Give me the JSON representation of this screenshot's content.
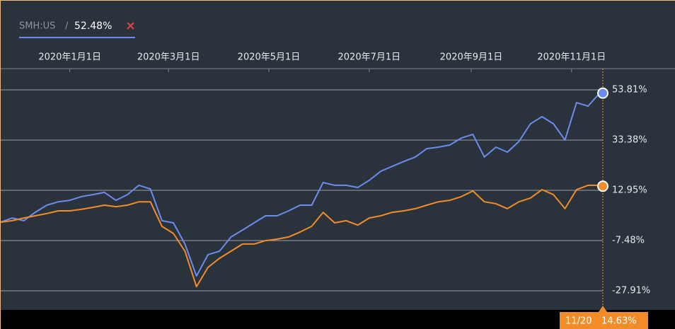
{
  "chart_data": {
    "type": "line",
    "legend_value_label": "52.48%",
    "legend_separator": "/",
    "tooltip": {
      "date": "11/20",
      "value": "14.63%"
    },
    "x": [
      "2019-11-20",
      "2019-11-27",
      "2019-12-04",
      "2019-12-11",
      "2019-12-18",
      "2019-12-25",
      "2020-01-01",
      "2020-01-08",
      "2020-01-15",
      "2020-01-22",
      "2020-01-29",
      "2020-02-05",
      "2020-02-12",
      "2020-02-19",
      "2020-02-26",
      "2020-03-04",
      "2020-03-11",
      "2020-03-18",
      "2020-03-25",
      "2020-04-01",
      "2020-04-08",
      "2020-04-15",
      "2020-04-22",
      "2020-04-29",
      "2020-05-06",
      "2020-05-13",
      "2020-05-20",
      "2020-05-27",
      "2020-06-03",
      "2020-06-10",
      "2020-06-17",
      "2020-06-24",
      "2020-07-01",
      "2020-07-08",
      "2020-07-15",
      "2020-07-22",
      "2020-07-29",
      "2020-08-05",
      "2020-08-12",
      "2020-08-19",
      "2020-08-26",
      "2020-09-02",
      "2020-09-09",
      "2020-09-16",
      "2020-09-23",
      "2020-09-30",
      "2020-10-07",
      "2020-10-14",
      "2020-10-21",
      "2020-10-28",
      "2020-11-04",
      "2020-11-11",
      "2020-11-18",
      "2020-11-20"
    ],
    "series": [
      {
        "name": "SMH:US",
        "color": "#6b8cee",
        "values": [
          0,
          1.7,
          0.6,
          4.0,
          6.9,
          8.3,
          8.9,
          10.4,
          11.2,
          12.1,
          8.9,
          11.2,
          15.0,
          13.5,
          0.6,
          -0.3,
          -8.9,
          -21.9,
          -13.2,
          -11.8,
          -6.0,
          -3.2,
          -0.3,
          2.6,
          2.6,
          4.6,
          6.9,
          6.9,
          16.1,
          15.0,
          15.0,
          14.1,
          17.0,
          20.7,
          22.7,
          24.7,
          26.5,
          29.9,
          30.5,
          31.4,
          34.2,
          35.7,
          26.5,
          30.5,
          28.5,
          32.8,
          40.0,
          42.9,
          40.0,
          33.4,
          48.6,
          47.2,
          52.4,
          52.48
        ]
      },
      {
        "color": "#f28c28",
        "values": [
          0,
          0.6,
          1.7,
          2.6,
          3.5,
          4.6,
          4.6,
          5.2,
          6.0,
          6.9,
          6.3,
          6.9,
          8.3,
          8.3,
          -1.7,
          -4.6,
          -11.8,
          -26.2,
          -18.4,
          -14.7,
          -11.8,
          -8.9,
          -8.9,
          -7.5,
          -6.9,
          -6.0,
          -4.0,
          -1.7,
          4.0,
          -0.3,
          0.6,
          -1.2,
          1.7,
          2.6,
          4.0,
          4.6,
          5.5,
          6.9,
          8.3,
          8.9,
          10.4,
          12.7,
          8.3,
          7.5,
          5.5,
          8.3,
          9.8,
          13.2,
          11.2,
          5.5,
          13.2,
          15.0,
          15.0,
          14.63
        ]
      }
    ],
    "xlim": [
      "2019-11-20",
      "2020-11-20"
    ],
    "xticks": [
      {
        "value": "2020-01-01",
        "label": "2020年1月1日"
      },
      {
        "value": "2020-03-01",
        "label": "2020年3月1日"
      },
      {
        "value": "2020-05-01",
        "label": "2020年5月1日"
      },
      {
        "value": "2020-07-01",
        "label": "2020年7月1日"
      },
      {
        "value": "2020-09-01",
        "label": "2020年9月1日"
      },
      {
        "value": "2020-11-01",
        "label": "2020年11月1日"
      }
    ],
    "ylim": [
      -35.68,
      62.44
    ],
    "yticks": [
      {
        "value": 53.81,
        "label": "53.81%"
      },
      {
        "value": 33.38,
        "label": "33.38%"
      },
      {
        "value": 12.95,
        "label": "12.95%"
      },
      {
        "value": -7.48,
        "label": "-7.48%"
      },
      {
        "value": -27.91,
        "label": "-27.91%"
      }
    ],
    "grid": true
  }
}
